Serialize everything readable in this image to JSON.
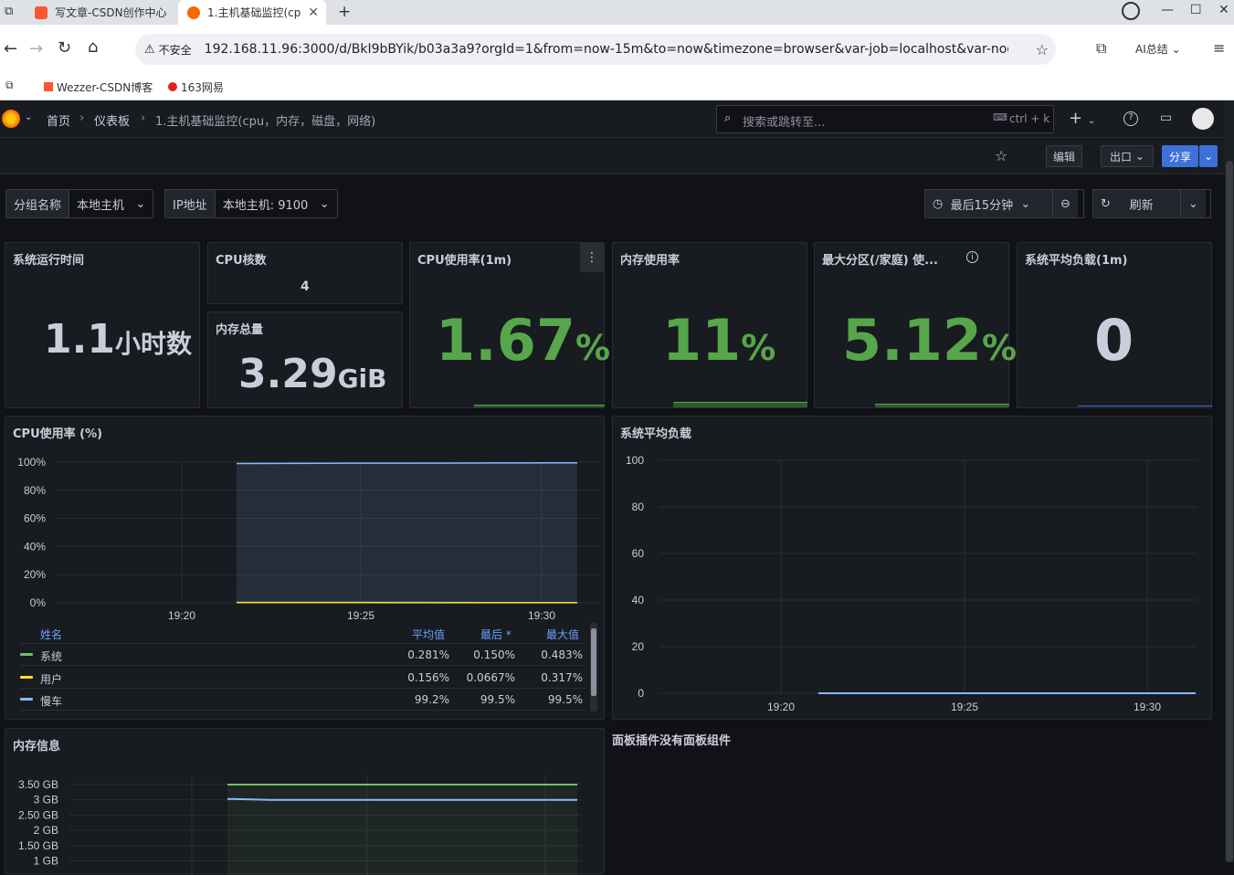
{
  "browser": {
    "tabs": [
      {
        "label": "写文章-CSDN创作中心"
      },
      {
        "label": "1.主机基础监控(cp"
      }
    ],
    "security": "不安全",
    "url": "192.168.11.96:3000/d/BkI9bBYik/b03a3a9?orgId=1&from=now-15m&to=now&timezone=browser&var-job=localhost&var-node=l...",
    "ai_summary": "AI总结",
    "bookmarks": [
      {
        "label": "Wezzer-CSDN博客"
      },
      {
        "label": "163网易"
      }
    ]
  },
  "grafana": {
    "breadcrumb": [
      "首页",
      "仪表板",
      "1.主机基础监控(cpu，内存，磁盘，网络)"
    ],
    "search_placeholder": "搜索或跳转至...",
    "shortcut": "ctrl + k",
    "edit_label": "编辑",
    "export_label": "出口",
    "share_label": "分享",
    "vars": [
      {
        "label": "分组名称",
        "value": "本地主机"
      },
      {
        "label": "IP地址",
        "value": "本地主机: 9100"
      }
    ],
    "time_range": "最后15分钟",
    "refresh_label": "刷新"
  },
  "stats": {
    "uptime": {
      "title": "系统运行时间",
      "value": "1.1",
      "unit": "小时数"
    },
    "cpu_cores": {
      "title": "CPU核数",
      "value": "4"
    },
    "mem_total": {
      "title": "内存总量",
      "value": "3.29",
      "unit": "GiB"
    },
    "cpu_usage": {
      "title": "CPU使用率(1m)",
      "value": "1.67",
      "unit": "%"
    },
    "mem_usage": {
      "title": "内存使用率",
      "value": "11",
      "unit": "%"
    },
    "disk_usage": {
      "title": "最大分区(/家庭) 使...",
      "value": "5.12",
      "unit": "%"
    },
    "load": {
      "title": "系统平均负载(1m)",
      "value": "0"
    }
  },
  "colors": {
    "green": "#73bf69",
    "stat_green": "#56a64b",
    "blue": "#8ab8ff",
    "yellow": "#fade2a",
    "accent": "#3d71d9"
  },
  "cpu_panel": {
    "title": "CPU使用率 (%)",
    "yticks": [
      "100%",
      "80%",
      "60%",
      "40%",
      "20%",
      "0%"
    ],
    "xticks": [
      "19:20",
      "19:25",
      "19:30"
    ],
    "legend_header": {
      "name": "姓名",
      "avg": "平均值",
      "last": "最后 *",
      "max": "最大值"
    },
    "legend": [
      {
        "name": "系统",
        "avg": "0.281%",
        "last": "0.150%",
        "max": "0.483%",
        "color": "#73bf69"
      },
      {
        "name": "用户",
        "avg": "0.156%",
        "last": "0.0667%",
        "max": "0.317%",
        "color": "#fade2a"
      },
      {
        "name": "慢车",
        "avg": "99.2%",
        "last": "99.5%",
        "max": "99.5%",
        "color": "#8ab8ff"
      }
    ]
  },
  "load_panel": {
    "title": "系统平均负载",
    "yticks": [
      "100",
      "80",
      "60",
      "40",
      "20",
      "0"
    ],
    "xticks": [
      "19:20",
      "19:25",
      "19:30"
    ]
  },
  "mem_panel": {
    "title": "内存信息",
    "yticks": [
      "3.50 GB",
      "3 GB",
      "2.50 GB",
      "2 GB",
      "1.50 GB",
      "1 GB"
    ]
  },
  "no_panel_text": "面板插件没有面板组件",
  "chart_data": [
    {
      "type": "area",
      "title": "CPU使用率 (%)",
      "x": [
        "19:17",
        "19:20",
        "19:22",
        "19:25",
        "19:28",
        "19:30",
        "19:31"
      ],
      "ylim": [
        0,
        100
      ],
      "series": [
        {
          "name": "系统",
          "values": [
            null,
            null,
            0.3,
            0.3,
            0.3,
            0.2,
            0.15
          ]
        },
        {
          "name": "用户",
          "values": [
            null,
            null,
            0.2,
            0.2,
            0.1,
            0.1,
            0.07
          ]
        },
        {
          "name": "慢车",
          "values": [
            null,
            null,
            99.0,
            99.2,
            99.3,
            99.4,
            99.5
          ]
        }
      ]
    },
    {
      "type": "line",
      "title": "系统平均负载",
      "x": [
        "19:17",
        "19:20",
        "19:21",
        "19:25",
        "19:30",
        "19:31"
      ],
      "ylim": [
        0,
        100
      ],
      "series": [
        {
          "name": "",
          "values": [
            null,
            null,
            0,
            0,
            0,
            0
          ]
        }
      ]
    },
    {
      "type": "line",
      "title": "内存信息",
      "ylim": [
        1,
        3.5
      ],
      "series": [
        {
          "name": "",
          "values": [
            3.5,
            3.5,
            3.5
          ]
        },
        {
          "name": "",
          "values": [
            3.0,
            3.0,
            3.0
          ]
        }
      ]
    }
  ]
}
